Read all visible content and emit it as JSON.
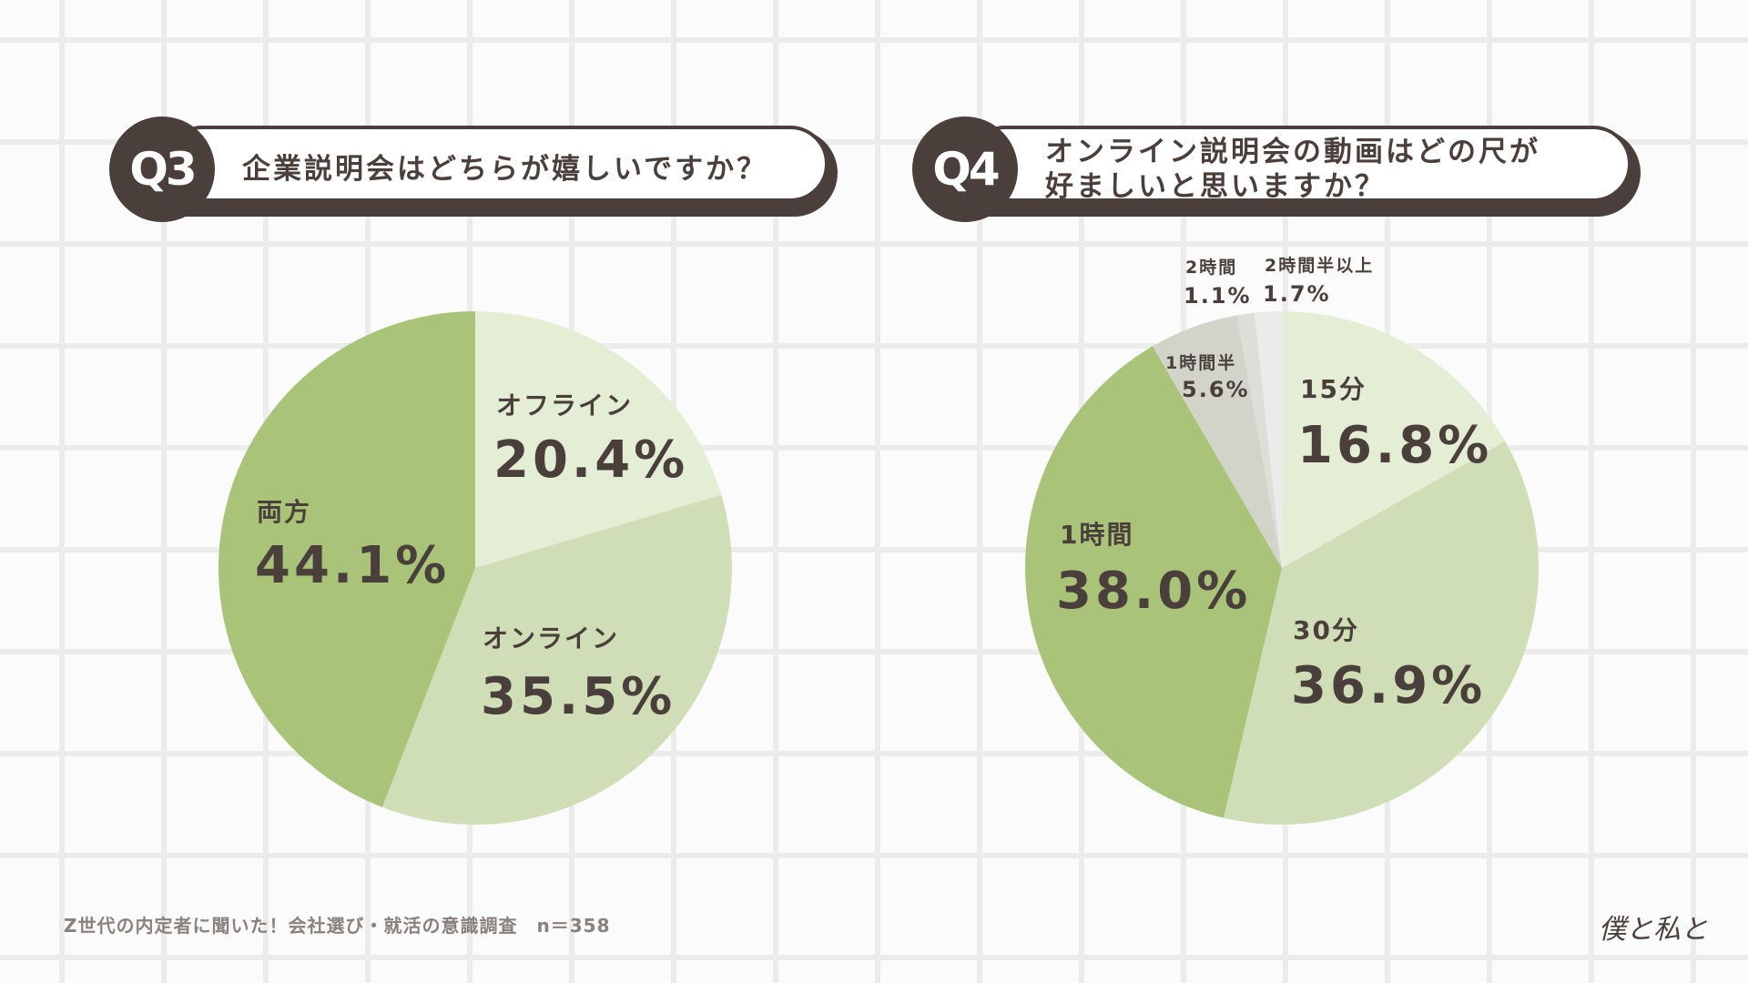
{
  "colors": {
    "lightest": "#e3eed5",
    "light": "#cfdeb6",
    "medium": "#a9c479",
    "gray": "#d2d4c9",
    "gray2": "#dddeda",
    "gray3": "#ecebeb",
    "text": "#4a3f3b"
  },
  "q3": {
    "badge": "Q3",
    "question": "企業説明会はどちらが嬉しいですか？"
  },
  "q4": {
    "badge": "Q4",
    "question_line1": "オンライン説明会の動画はどの尺が",
    "question_line2": "好ましいと思いますか？"
  },
  "chart_data": [
    {
      "type": "pie",
      "title": "企業説明会はどちらが嬉しいですか？",
      "slices": [
        {
          "label": "オフライン",
          "value": 20.4,
          "display": "20.4%",
          "color": "#e3eed5"
        },
        {
          "label": "オンライン",
          "value": 35.5,
          "display": "35.5%",
          "color": "#cfdeb6"
        },
        {
          "label": "両方",
          "value": 44.1,
          "display": "44.1%",
          "color": "#a9c479"
        }
      ]
    },
    {
      "type": "pie",
      "title": "オンライン説明会の動画はどの尺が好ましいと思いますか？",
      "slices": [
        {
          "label": "15分",
          "value": 16.8,
          "display": "16.8%",
          "color": "#e3eed5"
        },
        {
          "label": "30分",
          "value": 36.9,
          "display": "36.9%",
          "color": "#cfdeb6"
        },
        {
          "label": "1時間",
          "value": 38.0,
          "display": "38.0%",
          "color": "#a9c479"
        },
        {
          "label": "1時間半",
          "value": 5.6,
          "display": "5.6%",
          "color": "#d2d4c9"
        },
        {
          "label": "2時間",
          "value": 1.1,
          "display": "1.1%",
          "color": "#dddeda"
        },
        {
          "label": "2時間半以上",
          "value": 1.7,
          "display": "1.7%",
          "color": "#ecebeb"
        }
      ]
    }
  ],
  "footer": {
    "note": "Z世代の内定者に聞いた！会社選び・就活の意識調査　n＝358"
  },
  "logo": {
    "text": "僕と私と"
  }
}
